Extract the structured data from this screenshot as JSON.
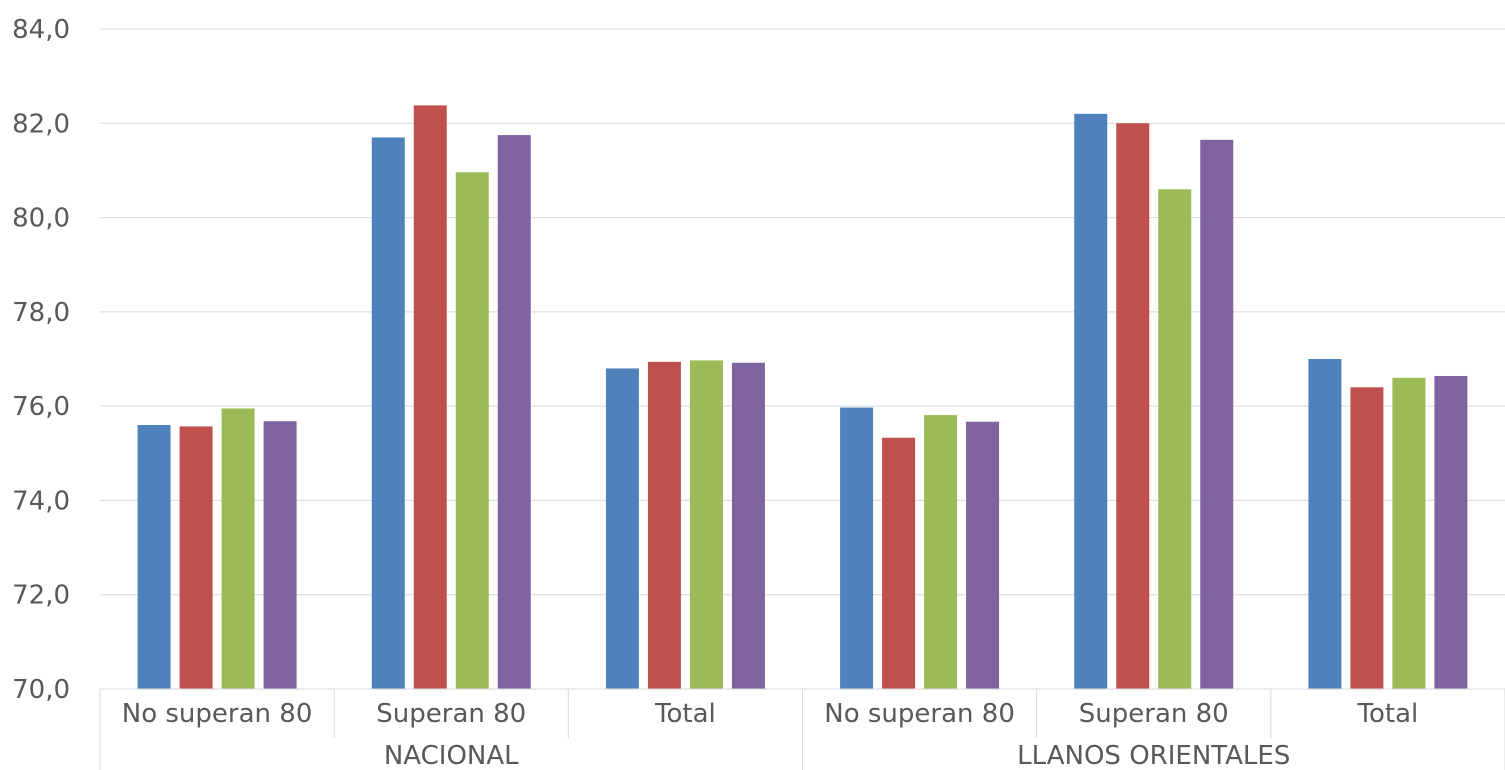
{
  "chart_data": {
    "type": "bar",
    "ylim": [
      70,
      84
    ],
    "y_ticks": [
      "70,0",
      "72,0",
      "74,0",
      "76,0",
      "78,0",
      "80,0",
      "82,0",
      "84,0"
    ],
    "grid": true,
    "groups": [
      {
        "label": "NACIONAL",
        "categories": [
          "No superan 80",
          "Superan 80",
          "Total"
        ]
      },
      {
        "label": "LLANOS ORIENTALES",
        "categories": [
          "No superan 80",
          "Superan 80",
          "Total"
        ]
      }
    ],
    "categories": [
      "No superan 80",
      "Superan 80",
      "Total",
      "No superan 80",
      "Superan 80",
      "Total"
    ],
    "series": [
      {
        "color": "#4F81BD",
        "values": [
          75.6,
          81.7,
          76.8,
          75.97,
          82.2,
          77.0
        ]
      },
      {
        "color": "#C0504D",
        "values": [
          75.57,
          82.38,
          76.94,
          75.33,
          82.0,
          76.4
        ]
      },
      {
        "color": "#9BBB59",
        "values": [
          75.95,
          80.96,
          76.97,
          75.81,
          80.6,
          76.6
        ]
      },
      {
        "color": "#8064A2",
        "values": [
          75.68,
          81.75,
          76.92,
          75.67,
          81.65,
          76.64
        ]
      }
    ]
  }
}
